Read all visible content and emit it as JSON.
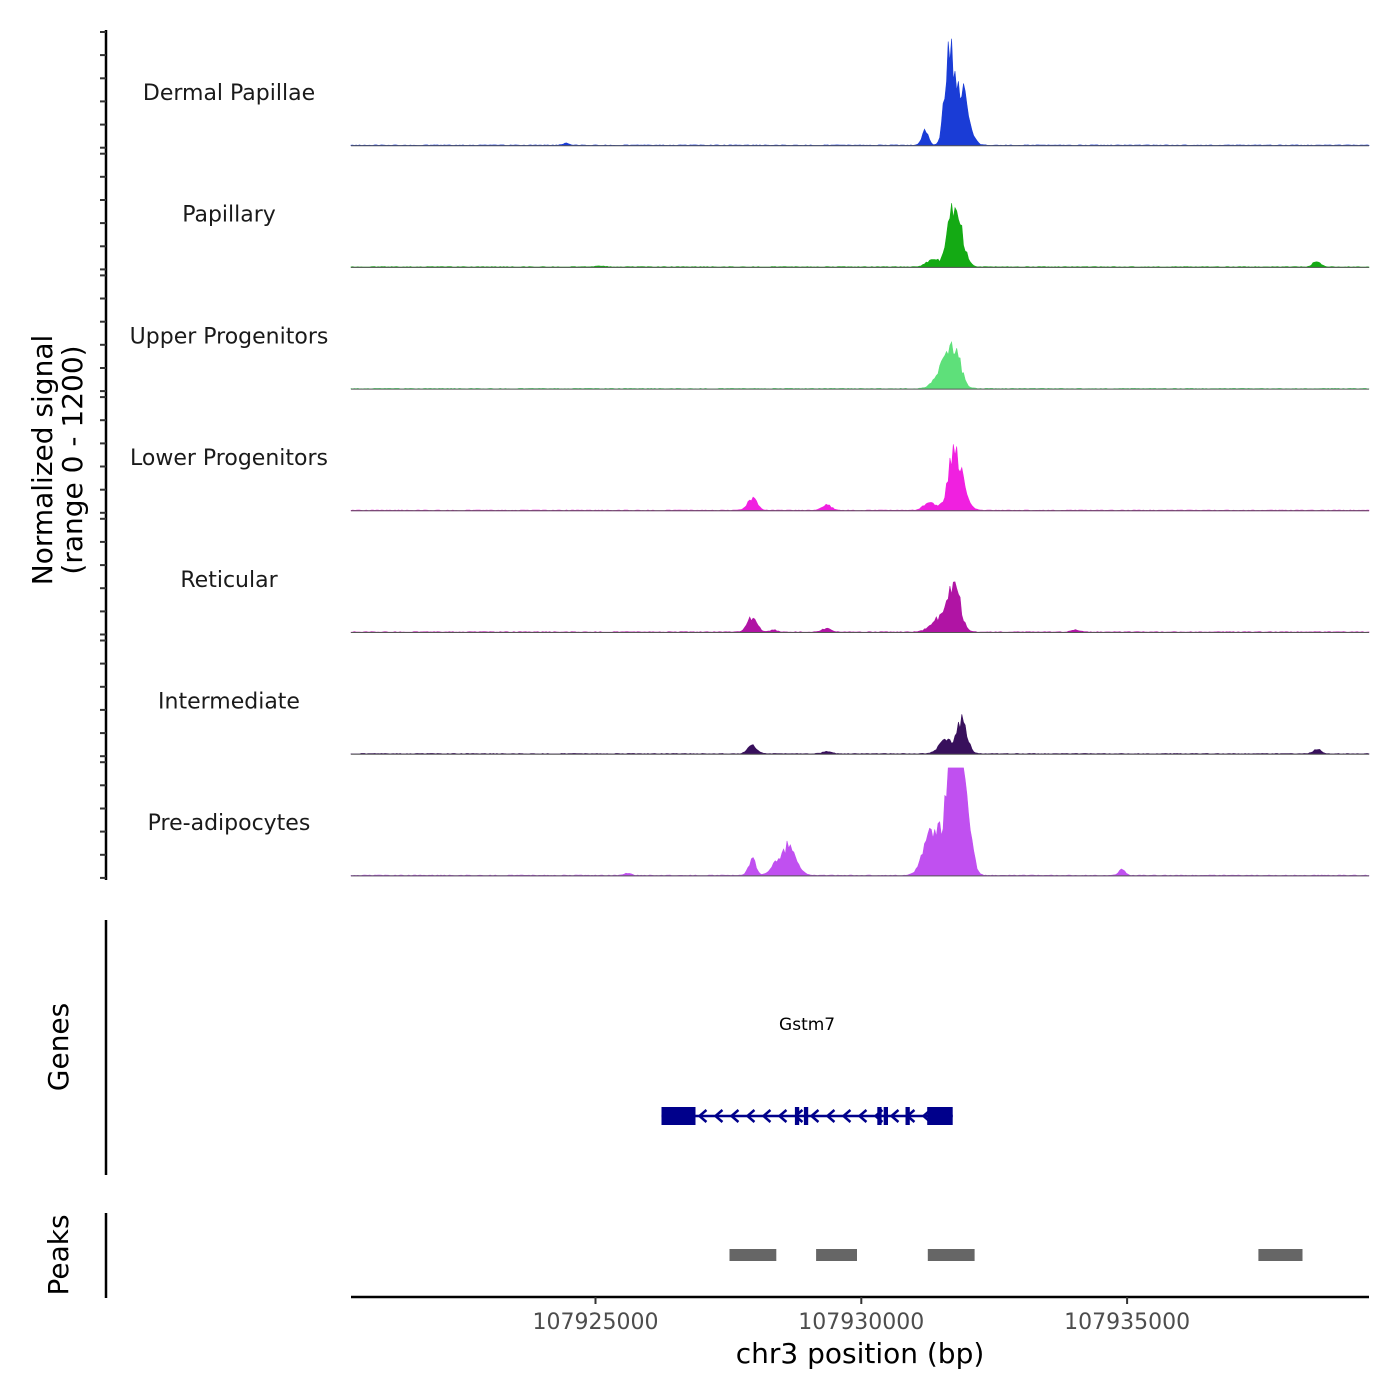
{
  "chart_data": {
    "type": "area",
    "title": "",
    "ylabel": "Normalized signal",
    "ylabel_range": "(range 0 - 1200)",
    "ylim": [
      0,
      1200
    ],
    "xlabel": "chr3 position (bp)",
    "xlim": [
      107920400,
      107939550
    ],
    "x_ticks": [
      107925000,
      107930000,
      107935000
    ],
    "x_tick_labels": [
      "107925000",
      "107930000",
      "107935000"
    ],
    "tracks": [
      {
        "name": "Dermal Papillae",
        "color": "#1a3cd6",
        "peaks": [
          [
            107924450,
            25,
            60
          ],
          [
            107931200,
            150,
            60
          ],
          [
            107931650,
            1000,
            80
          ],
          [
            107931900,
            640,
            120
          ]
        ]
      },
      {
        "name": "Papillary",
        "color": "#14aa14",
        "peaks": [
          [
            107931350,
            90,
            120
          ],
          [
            107931700,
            500,
            90
          ],
          [
            107931850,
            360,
            100
          ],
          [
            107938570,
            70,
            70
          ],
          [
            107925100,
            10,
            80
          ]
        ]
      },
      {
        "name": "Upper Progenitors",
        "color": "#5ee07a",
        "peaks": [
          [
            107931500,
            200,
            130
          ],
          [
            107931750,
            420,
            120
          ]
        ]
      },
      {
        "name": "Lower Progenitors",
        "color": "#f020e0",
        "peaks": [
          [
            107927950,
            130,
            90
          ],
          [
            107929350,
            60,
            90
          ],
          [
            107931300,
            80,
            120
          ],
          [
            107931720,
            500,
            100
          ],
          [
            107931880,
            320,
            110
          ]
        ]
      },
      {
        "name": "Reticular",
        "color": "#b014a4",
        "peaks": [
          [
            107927950,
            160,
            90
          ],
          [
            107928350,
            20,
            80
          ],
          [
            107929350,
            40,
            80
          ],
          [
            107931450,
            140,
            150
          ],
          [
            107931750,
            520,
            110
          ],
          [
            107934020,
            20,
            80
          ]
        ]
      },
      {
        "name": "Intermediate",
        "color": "#38105c",
        "peaks": [
          [
            107927950,
            100,
            80
          ],
          [
            107929350,
            25,
            80
          ],
          [
            107931600,
            140,
            140
          ],
          [
            107931900,
            360,
            90
          ],
          [
            107938570,
            55,
            70
          ]
        ]
      },
      {
        "name": "Pre-adipocytes",
        "color": "#c050f0",
        "peaks": [
          [
            107927950,
            170,
            70
          ],
          [
            107928350,
            100,
            90
          ],
          [
            107928650,
            340,
            130
          ],
          [
            107931350,
            500,
            160
          ],
          [
            107931720,
            1500,
            110
          ],
          [
            107931920,
            1200,
            110
          ],
          [
            107934900,
            60,
            60
          ],
          [
            107925600,
            25,
            60
          ]
        ]
      }
    ],
    "genes": {
      "title": "Genes",
      "name": "Gstm7",
      "color": "#00008b",
      "strand": "-",
      "start": 107926240,
      "end": 107931720,
      "exons": [
        [
          107926240,
          107926880
        ],
        [
          107928750,
          107928830
        ],
        [
          107928920,
          107929000
        ],
        [
          107930300,
          107930380
        ],
        [
          107930420,
          107930500
        ],
        [
          107930830,
          107930910
        ],
        [
          107931240,
          107931720
        ]
      ]
    },
    "peaks_track": {
      "title": "Peaks",
      "color": "#666666",
      "regions": [
        [
          107927520,
          107928400
        ],
        [
          107929150,
          107929920
        ],
        [
          107931250,
          107932130
        ],
        [
          107937470,
          107938300
        ]
      ]
    }
  }
}
